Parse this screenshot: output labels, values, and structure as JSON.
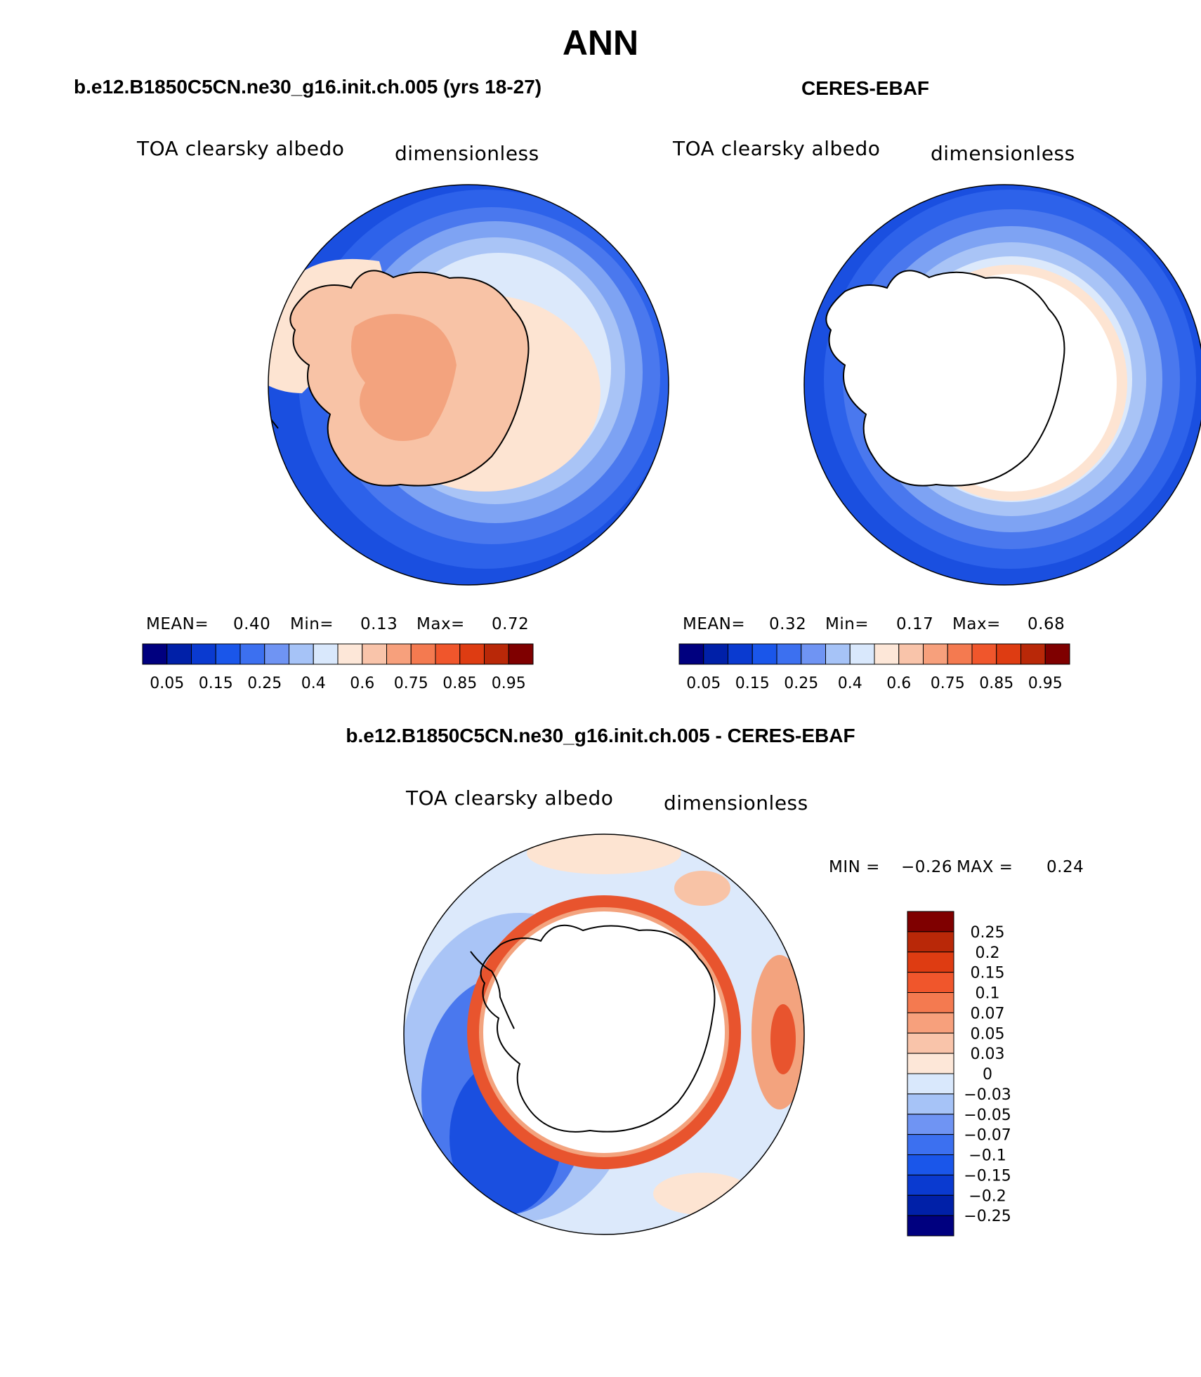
{
  "title": "ANN",
  "colors": {
    "ocean_deep": "#1a4fe0",
    "ocean_mid": "#4a78ee",
    "ocean_light": "#a9c4f6",
    "pale_blue": "#dce9fb",
    "peach_light": "#fde4d2",
    "peach": "#f8c3a6",
    "peach_dark": "#f3a37e",
    "red_ring": "#e8542e",
    "coast": "#000000",
    "mask": "#ffffff"
  },
  "panels": {
    "model": {
      "title": "b.e12.B1850C5CN.ne30_g16.init.ch.005 (yrs 18-27)",
      "variable": "TOA clearsky albedo",
      "units": "dimensionless",
      "mean_label": "MEAN=",
      "mean": "0.40",
      "min_label": "Min=",
      "min": "0.13",
      "max_label": "Max=",
      "max": "0.72"
    },
    "obs": {
      "title": "CERES-EBAF",
      "variable": "TOA clearsky albedo",
      "units": "dimensionless",
      "mean_label": "MEAN=",
      "mean": "0.32",
      "min_label": "Min=",
      "min": "0.17",
      "max_label": "Max=",
      "max": "0.68"
    },
    "diff": {
      "title": "b.e12.B1850C5CN.ne30_g16.init.ch.005 - CERES-EBAF",
      "variable": "TOA clearsky albedo",
      "units": "dimensionless",
      "min_label": "MIN =",
      "min": "−0.26",
      "max_label": "MAX =",
      "max": "0.24"
    }
  },
  "colorbar_main": {
    "colors": [
      "#00007f",
      "#0020a8",
      "#0a3ad0",
      "#1a56ea",
      "#3c70f0",
      "#6f94f3",
      "#a6c3f7",
      "#d9e8fc",
      "#fde7d8",
      "#f9c4aa",
      "#f7a07c",
      "#f47a50",
      "#f0562c",
      "#de3c12",
      "#b92808",
      "#7f0000"
    ],
    "tick_labels": [
      "0.05",
      "0.15",
      "0.25",
      "0.4",
      "0.6",
      "0.75",
      "0.85",
      "0.95"
    ]
  },
  "colorbar_diff": {
    "colors": [
      "#00007f",
      "#0020a8",
      "#0a3ad0",
      "#1a56ea",
      "#3c70f0",
      "#6f94f3",
      "#a6c3f7",
      "#d9e8fc",
      "#fde7d8",
      "#f9c4aa",
      "#f7a07c",
      "#f47a50",
      "#f0562c",
      "#de3c12",
      "#b92808",
      "#7f0000"
    ],
    "tick_labels": [
      "−0.25",
      "−0.2",
      "−0.15",
      "−0.1",
      "−0.07",
      "−0.05",
      "−0.03",
      "0",
      "0.03",
      "0.05",
      "0.07",
      "0.1",
      "0.15",
      "0.2",
      "0.25"
    ]
  }
}
